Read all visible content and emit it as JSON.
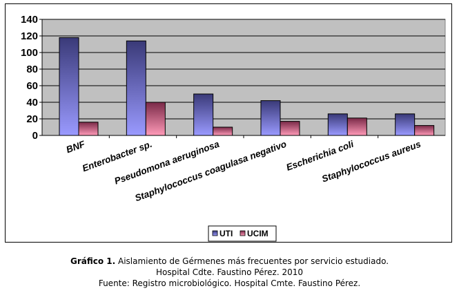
{
  "chart_data": {
    "type": "bar",
    "categories": [
      "BNF",
      "Enterobacter  sp.",
      "Pseudomona aeruginosa",
      "Staphylococcus coagulasa negativo",
      "Escherichia  coli",
      "Staphylococcus  aureus"
    ],
    "series": [
      {
        "name": "UTI",
        "values": [
          118,
          114,
          50,
          42,
          26,
          26
        ]
      },
      {
        "name": "UCIM",
        "values": [
          16,
          40,
          10,
          17,
          21,
          12
        ]
      }
    ],
    "yticks": [
      "0",
      "20",
      "40",
      "60",
      "80",
      "100",
      "120",
      "140"
    ],
    "ylim": [
      0,
      140
    ],
    "grid": true,
    "legend": "bottom-center",
    "colors": {
      "UTI_top": "#3a3a78",
      "UTI_bottom": "#9a9aff",
      "UCIM_top": "#7a2a48",
      "UCIM_bottom": "#ff9ab8",
      "plot_bg": "#c0c0c0"
    }
  },
  "caption": {
    "prefix": "Gráfico 1.",
    "line1": " Aislamiento de Gérmenes más frecuentes por servicio estudiado.",
    "line2": "Hospital Cdte. Faustino Pérez. 2010",
    "line3": "Fuente: Registro microbiológico. Hospital Cmte. Faustino Pérez."
  }
}
